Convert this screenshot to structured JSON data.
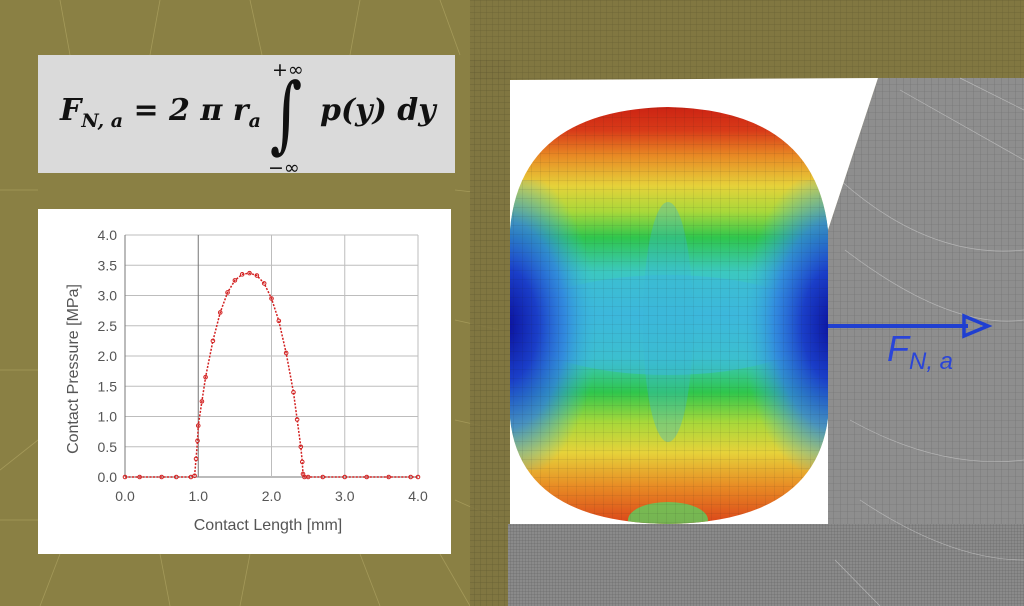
{
  "formula": {
    "lhs_symbol": "F",
    "lhs_subscript": "N, a",
    "rhs_prefix": "= 2 π r",
    "rhs_subscript": "a",
    "upper_limit": "+∞",
    "lower_limit": "−∞",
    "integral_sign": "∫",
    "integrand": "p(y) dy"
  },
  "force_label": {
    "symbol": "F",
    "subscript": "N, a"
  },
  "colors": {
    "background_mesh": "#8a8044",
    "arrow": "#1f3fd1",
    "curve": "#d22020",
    "contour": [
      "#0b14a8",
      "#2b6be0",
      "#38b8d6",
      "#4ed8a8",
      "#2ec44a",
      "#a6d93a",
      "#e8d23a",
      "#ec8a24",
      "#d62a18"
    ]
  },
  "chart_data": {
    "type": "scatter",
    "xlabel": "Contact Length [mm]",
    "ylabel": "Contact Pressure  [MPa]",
    "xlim": [
      0.0,
      4.0
    ],
    "ylim": [
      0.0,
      4.0
    ],
    "x_ticks": [
      "0.0",
      "1.0",
      "2.0",
      "3.0",
      "4.0"
    ],
    "y_ticks": [
      "0.0",
      "0.5",
      "1.0",
      "1.5",
      "2.0",
      "2.5",
      "3.0",
      "3.5",
      "4.0"
    ],
    "grid": true,
    "series": [
      {
        "x": [
          0.0,
          0.2,
          0.5,
          0.7,
          0.9,
          0.95,
          0.97,
          0.99,
          1.0,
          1.05,
          1.1,
          1.2,
          1.3,
          1.4,
          1.5,
          1.6,
          1.7,
          1.8,
          1.9,
          2.0,
          2.1,
          2.2,
          2.3,
          2.35,
          2.4,
          2.42,
          2.43,
          2.45,
          2.5,
          2.7,
          3.0,
          3.3,
          3.6,
          3.9,
          4.0
        ],
        "y": [
          0.0,
          0.0,
          0.0,
          0.0,
          0.0,
          0.02,
          0.3,
          0.6,
          0.85,
          1.25,
          1.65,
          2.25,
          2.72,
          3.05,
          3.25,
          3.35,
          3.37,
          3.33,
          3.2,
          2.95,
          2.58,
          2.05,
          1.4,
          0.95,
          0.5,
          0.25,
          0.05,
          0.0,
          0.0,
          0.0,
          0.0,
          0.0,
          0.0,
          0.0,
          0.0
        ]
      }
    ]
  }
}
